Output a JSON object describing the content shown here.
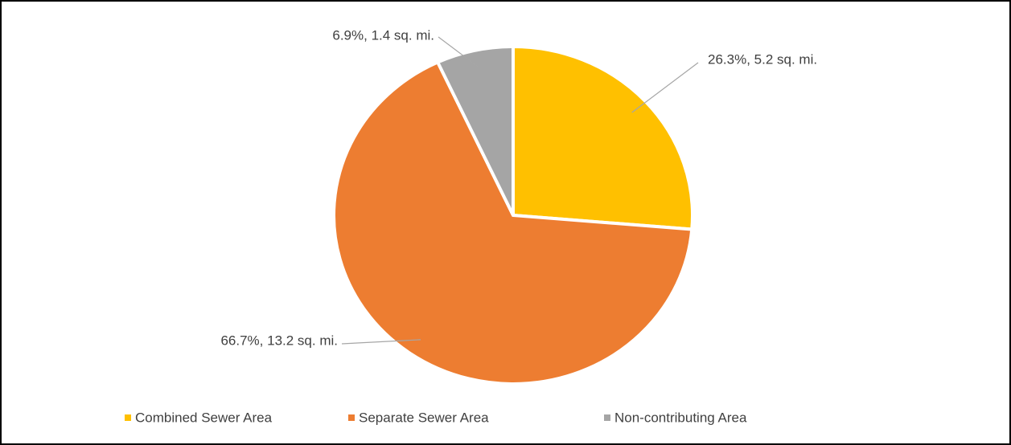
{
  "chart_data": {
    "type": "pie",
    "categories": [
      "Combined Sewer Area",
      "Separate Sewer Area",
      "Non-contributing Area"
    ],
    "values": [
      26.3,
      66.7,
      6.9
    ],
    "value_labels": [
      "26.3%, 5.2 sq. mi.",
      "66.7%, 13.2 sq. mi.",
      "6.9%, 1.4 sq. mi."
    ],
    "colors": [
      "#FFC000",
      "#ED7D31",
      "#A5A5A5"
    ],
    "legend": "bottom"
  }
}
